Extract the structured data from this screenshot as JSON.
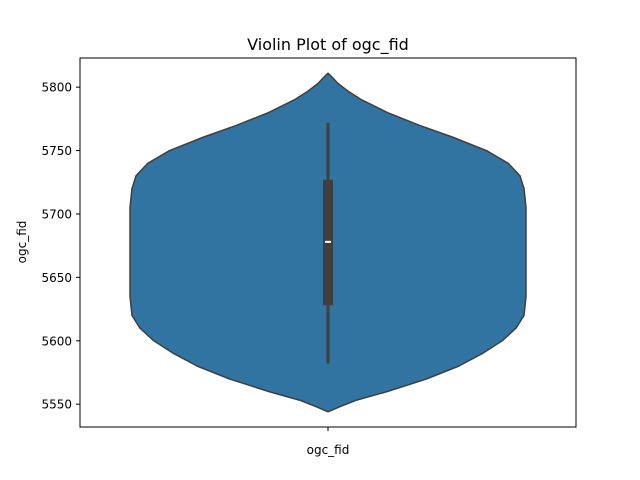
{
  "chart_data": {
    "type": "violin",
    "title": "Violin Plot of ogc_fid",
    "xlabel": "",
    "ylabel": "ogc_fid",
    "categories": [
      "ogc_fid"
    ],
    "ylim": [
      5532,
      5823
    ],
    "yticks": [
      5550,
      5600,
      5650,
      5700,
      5750,
      5800
    ],
    "grid": false,
    "violin": {
      "min": 5582,
      "q1": 5628,
      "median": 5678,
      "q3": 5727,
      "max": 5772,
      "kde_extent": [
        5544,
        5811
      ],
      "density_profile": [
        {
          "y": 5544,
          "width": 0.0
        },
        {
          "y": 5548,
          "width": 0.06
        },
        {
          "y": 5553,
          "width": 0.14
        },
        {
          "y": 5560,
          "width": 0.3
        },
        {
          "y": 5570,
          "width": 0.5
        },
        {
          "y": 5580,
          "width": 0.66
        },
        {
          "y": 5590,
          "width": 0.78
        },
        {
          "y": 5600,
          "width": 0.88
        },
        {
          "y": 5610,
          "width": 0.95
        },
        {
          "y": 5620,
          "width": 0.99
        },
        {
          "y": 5635,
          "width": 1.0
        },
        {
          "y": 5650,
          "width": 1.0
        },
        {
          "y": 5670,
          "width": 1.0
        },
        {
          "y": 5690,
          "width": 1.0
        },
        {
          "y": 5705,
          "width": 1.0
        },
        {
          "y": 5720,
          "width": 0.99
        },
        {
          "y": 5730,
          "width": 0.97
        },
        {
          "y": 5740,
          "width": 0.91
        },
        {
          "y": 5750,
          "width": 0.8
        },
        {
          "y": 5760,
          "width": 0.64
        },
        {
          "y": 5770,
          "width": 0.46
        },
        {
          "y": 5780,
          "width": 0.3
        },
        {
          "y": 5790,
          "width": 0.17
        },
        {
          "y": 5797,
          "width": 0.1
        },
        {
          "y": 5803,
          "width": 0.05
        },
        {
          "y": 5808,
          "width": 0.02
        },
        {
          "y": 5811,
          "width": 0.0
        }
      ]
    },
    "colors": {
      "violin_fill": "#3274a1",
      "violin_edge": "#3f3f3f",
      "box": "#3f3f3f",
      "median": "#ffffff"
    }
  }
}
